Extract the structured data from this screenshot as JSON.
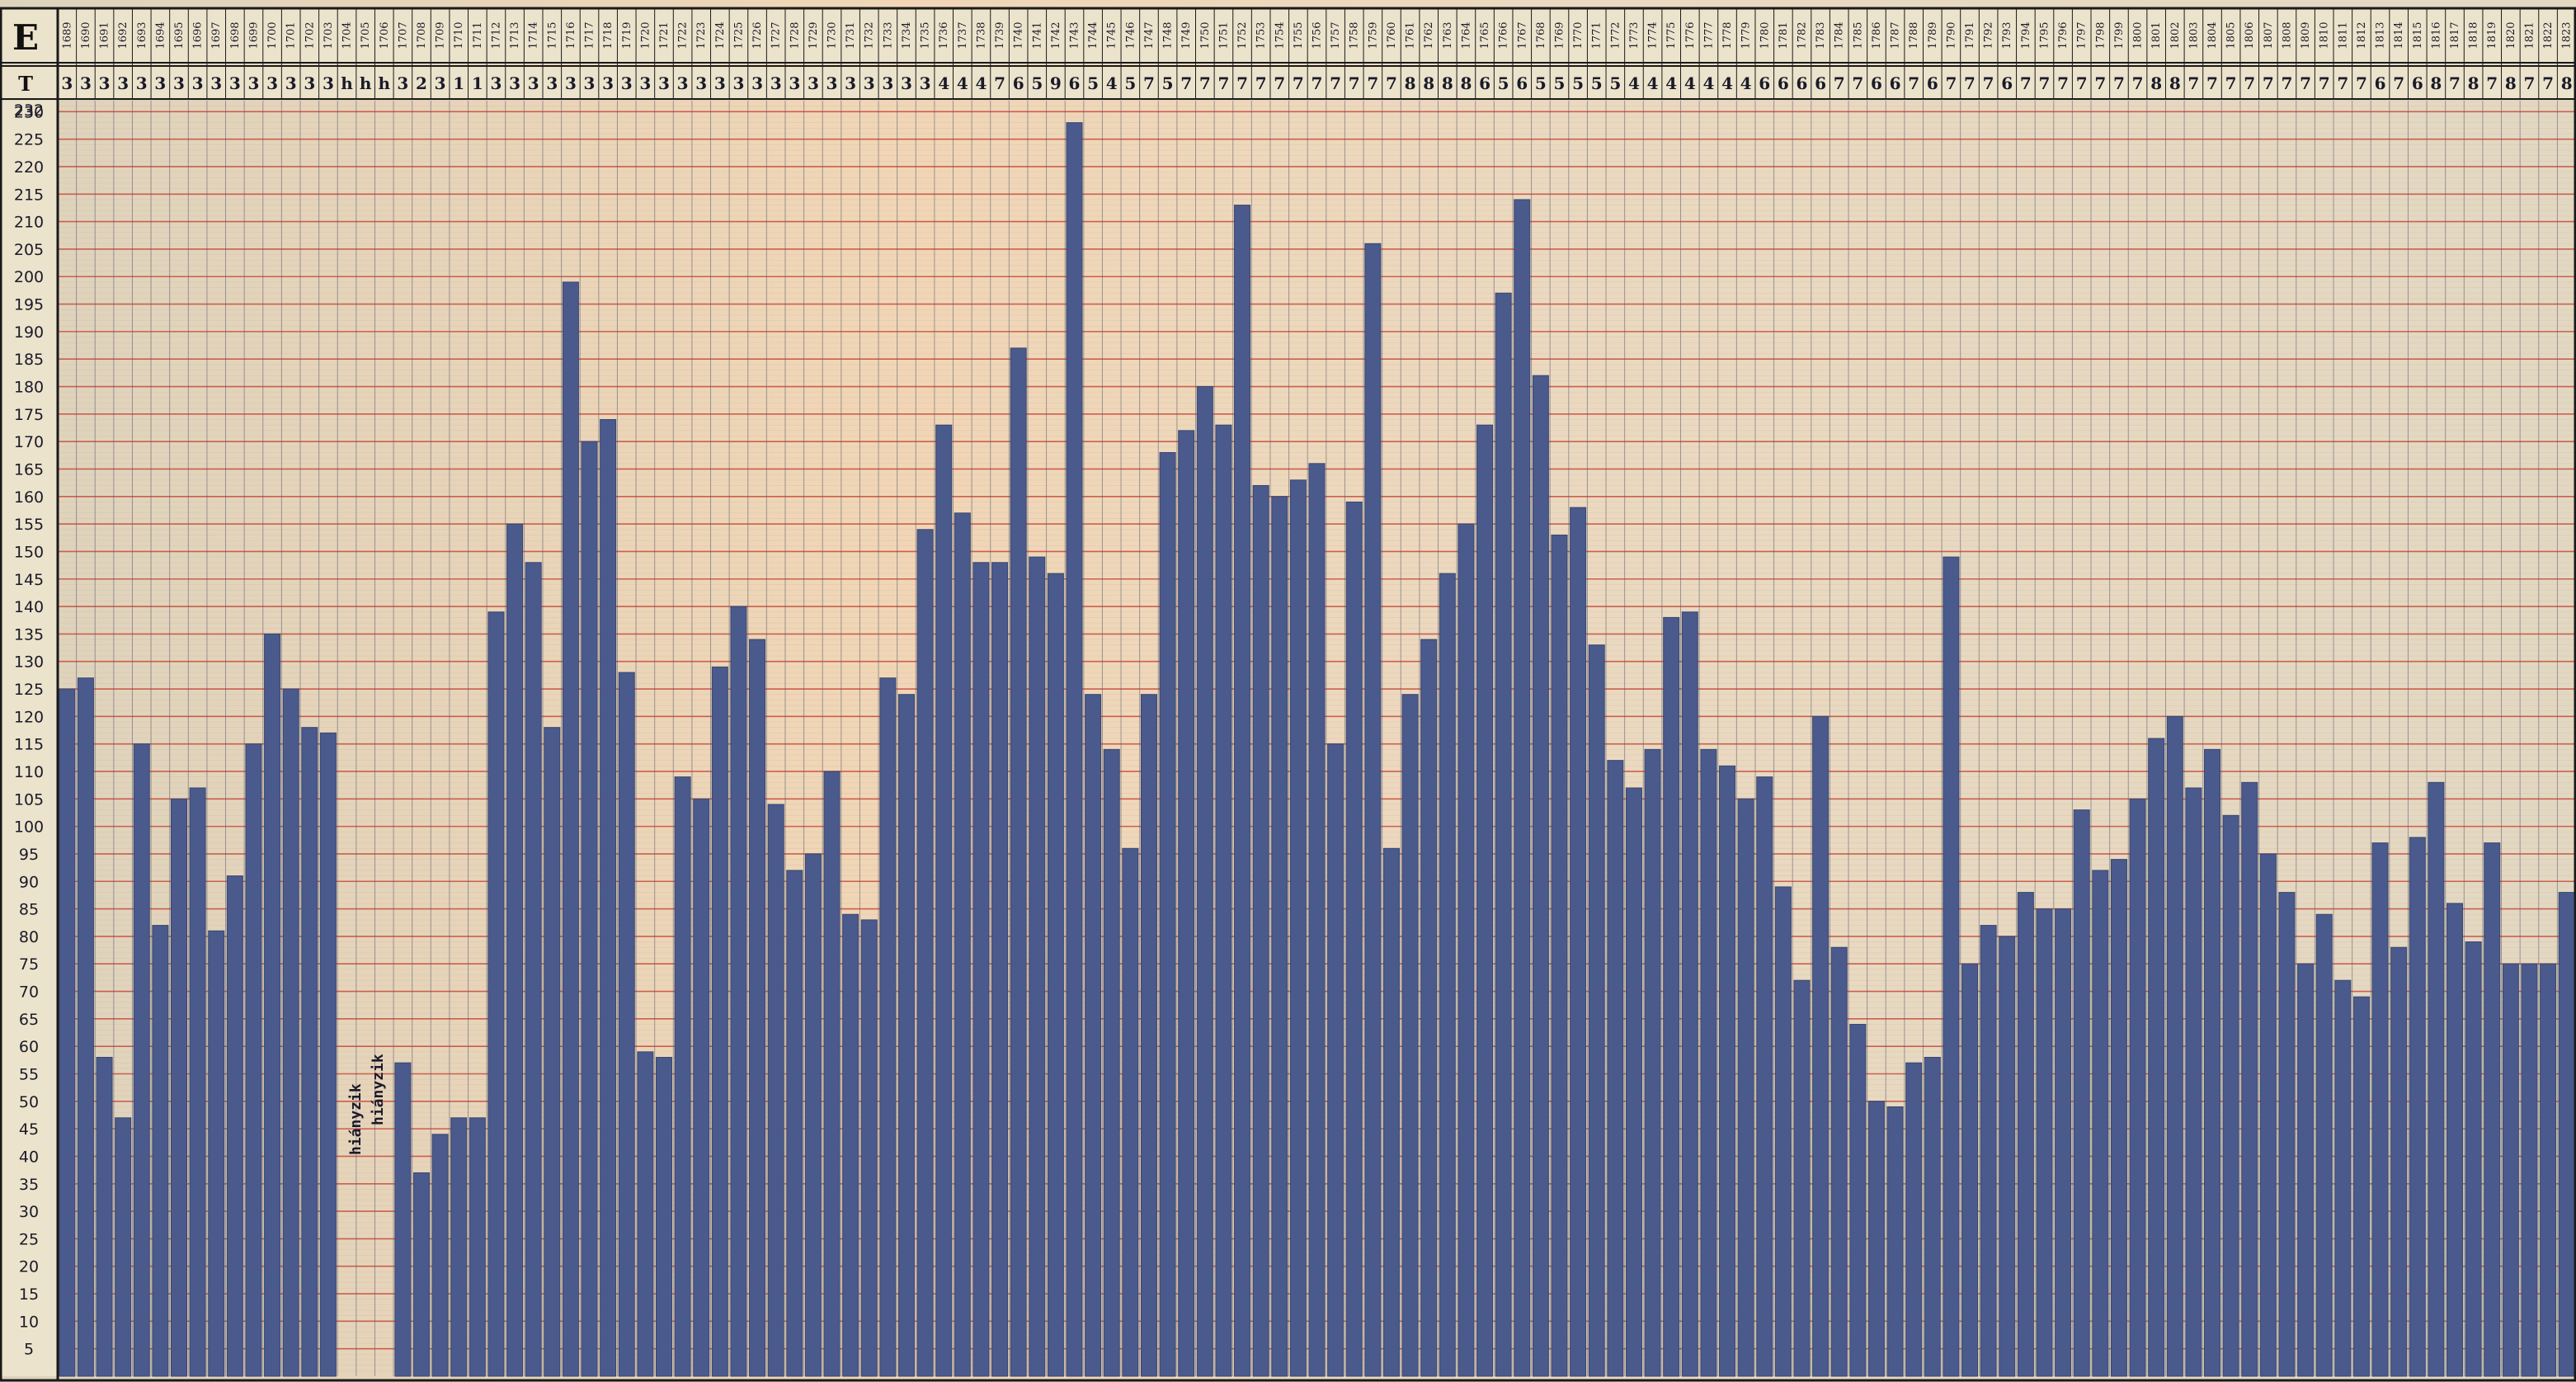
{
  "chart_data": {
    "type": "bar",
    "header_row_label": "E",
    "t_row_label": "T",
    "categories": [
      "1689",
      "1690",
      "1691",
      "1692",
      "1693",
      "1694",
      "1695",
      "1696",
      "1697",
      "1698",
      "1699",
      "1700",
      "1701",
      "1702",
      "1703",
      "1704",
      "1705",
      "1706",
      "1707",
      "1708",
      "1709",
      "1710",
      "1711",
      "1712",
      "1713",
      "1714",
      "1715",
      "1716",
      "1717",
      "1718",
      "1719",
      "1720",
      "1721",
      "1722",
      "1723",
      "1724",
      "1725",
      "1726",
      "1727",
      "1728",
      "1729",
      "1730",
      "1731",
      "1732",
      "1733",
      "1734",
      "1735",
      "1736",
      "1737",
      "1738",
      "1739",
      "1740",
      "1741",
      "1742",
      "1743",
      "1744",
      "1745",
      "1746",
      "1747",
      "1748",
      "1749",
      "1750",
      "1751",
      "1752",
      "1753",
      "1754",
      "1755",
      "1756",
      "1757",
      "1758",
      "1759",
      "1760",
      "1761",
      "1762",
      "1763",
      "1764",
      "1765",
      "1766",
      "1767",
      "1768",
      "1769",
      "1770",
      "1771",
      "1772",
      "1773",
      "1774",
      "1775",
      "1776",
      "1777",
      "1778",
      "1779",
      "1780",
      "1781",
      "1782",
      "1783",
      "1784",
      "1785",
      "1786",
      "1787",
      "1788",
      "1789",
      "1790",
      "1791",
      "1792",
      "1793",
      "1794",
      "1795",
      "1796",
      "1797",
      "1798",
      "1799",
      "1800",
      "1801",
      "1802",
      "1803",
      "1804",
      "1805",
      "1806",
      "1807",
      "1808",
      "1809",
      "1810",
      "1811",
      "1812",
      "1813",
      "1814",
      "1815",
      "1816",
      "1817",
      "1818",
      "1819",
      "1820",
      "1821",
      "1822",
      "1823"
    ],
    "t_values": [
      "3",
      "3",
      "3",
      "3",
      "3",
      "3",
      "3",
      "3",
      "3",
      "3",
      "3",
      "3",
      "3",
      "3",
      "3",
      "h",
      "h",
      "h",
      "3",
      "2",
      "3",
      "1",
      "1",
      "3",
      "3",
      "3",
      "3",
      "3",
      "3",
      "3",
      "3",
      "3",
      "3",
      "3",
      "3",
      "3",
      "3",
      "3",
      "3",
      "3",
      "3",
      "3",
      "3",
      "3",
      "3",
      "3",
      "3",
      "4",
      "4",
      "4",
      "7",
      "6",
      "5",
      "9",
      "6",
      "5",
      "4",
      "5",
      "7",
      "5",
      "7",
      "7",
      "7",
      "7",
      "7",
      "7",
      "7",
      "7",
      "7",
      "7",
      "7",
      "7",
      "8",
      "8",
      "8",
      "8",
      "6",
      "5",
      "6",
      "5",
      "5",
      "5",
      "5",
      "5",
      "4",
      "4",
      "4",
      "4",
      "4",
      "4",
      "4",
      "6",
      "6",
      "6",
      "6",
      "7",
      "7",
      "6",
      "6",
      "7",
      "6",
      "7",
      "7",
      "7",
      "6",
      "7",
      "7",
      "7",
      "7",
      "7",
      "7",
      "7",
      "8",
      "8",
      "7",
      "7",
      "7",
      "7",
      "7",
      "7",
      "7",
      "7",
      "7",
      "7",
      "6",
      "7",
      "6",
      "8",
      "7",
      "8",
      "7",
      "8",
      "7",
      "7",
      "8"
    ],
    "values": [
      125,
      127,
      58,
      47,
      115,
      82,
      105,
      107,
      81,
      91,
      115,
      135,
      125,
      118,
      117,
      null,
      null,
      null,
      57,
      37,
      44,
      47,
      47,
      139,
      155,
      148,
      118,
      199,
      170,
      174,
      128,
      59,
      58,
      109,
      105,
      129,
      140,
      134,
      104,
      92,
      95,
      110,
      84,
      83,
      127,
      124,
      154,
      173,
      157,
      148,
      148,
      187,
      149,
      146,
      228,
      124,
      114,
      96,
      124,
      168,
      172,
      180,
      173,
      213,
      162,
      160,
      163,
      166,
      115,
      159,
      206,
      96,
      124,
      134,
      146,
      155,
      173,
      197,
      214,
      182,
      153,
      158,
      133,
      112,
      107,
      114,
      138,
      139,
      114,
      111,
      105,
      109,
      89,
      72,
      120,
      78,
      64,
      50,
      49,
      57,
      58,
      149,
      75,
      82,
      80,
      88,
      85,
      85,
      103,
      92,
      94,
      105,
      116,
      120,
      107,
      114,
      102,
      108,
      95,
      88,
      75,
      84,
      72,
      69,
      97,
      78,
      98,
      108,
      86,
      79,
      97,
      75,
      75,
      75,
      88
    ],
    "missing_label": "hiányzik",
    "yticks": [
      5,
      10,
      15,
      20,
      25,
      30,
      35,
      40,
      45,
      50,
      55,
      60,
      65,
      70,
      75,
      80,
      85,
      90,
      95,
      100,
      105,
      110,
      115,
      120,
      125,
      130,
      135,
      140,
      145,
      150,
      155,
      160,
      165,
      170,
      175,
      180,
      185,
      190,
      195,
      200,
      205,
      210,
      215,
      220,
      225,
      230
    ],
    "y_top_label": "232",
    "ylim": [
      0,
      232
    ],
    "grid": true,
    "colors": {
      "bar": "#4a5a8c",
      "bar_edge": "#39466f",
      "paper": "#e6dcc4",
      "paper_warm": "#f0d4b4",
      "grid_red": "#c84a3a",
      "grid_dark": "#5a5a6a",
      "frame": "#1a1a1a"
    }
  }
}
